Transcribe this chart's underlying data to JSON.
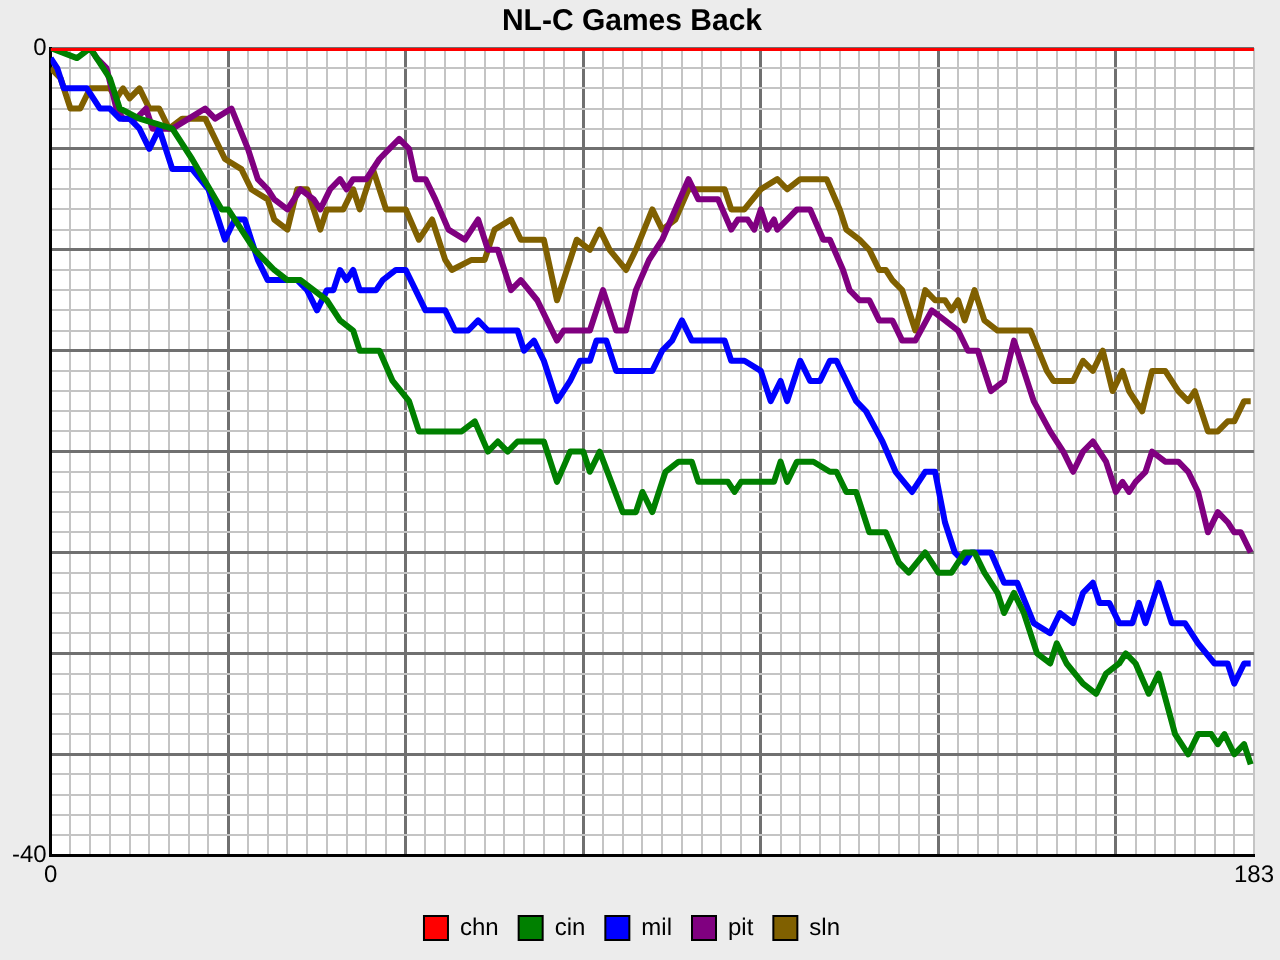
{
  "chart_data": {
    "type": "line",
    "title": "NL-C Games Back",
    "xlim": [
      0,
      183
    ],
    "ylim": [
      -40,
      0
    ],
    "xticks": [
      0,
      {
        "value": 3,
        "label": null
      },
      {
        "value": 6,
        "label": null
      },
      {
        "value": 9,
        "label": null
      },
      {
        "value": 12,
        "label": null
      },
      {
        "value": 15,
        "label": null
      },
      {
        "value": 18,
        "label": null
      },
      {
        "value": 21,
        "label": null
      },
      {
        "value": 24,
        "label": null
      },
      {
        "value": 27,
        "label": null
      },
      {
        "value": 30,
        "label": null
      },
      {
        "value": 33,
        "label": null
      },
      {
        "value": 36,
        "label": null
      },
      {
        "value": 39,
        "label": null
      },
      {
        "value": 42,
        "label": null
      },
      {
        "value": 45,
        "label": null
      },
      {
        "value": 48,
        "label": null
      },
      {
        "value": 51,
        "label": null
      },
      {
        "value": 54,
        "label": null
      },
      {
        "value": 57,
        "label": null
      },
      {
        "value": 60,
        "label": null
      },
      {
        "value": 63,
        "label": null
      },
      {
        "value": 66,
        "label": null
      },
      {
        "value": 69,
        "label": null
      },
      {
        "value": 72,
        "label": null
      },
      {
        "value": 75,
        "label": null
      },
      {
        "value": 78,
        "label": null
      },
      {
        "value": 81,
        "label": null
      },
      {
        "value": 84,
        "label": null
      },
      {
        "value": 87,
        "label": null
      },
      {
        "value": 90,
        "label": null
      },
      {
        "value": 93,
        "label": null
      },
      {
        "value": 96,
        "label": null
      },
      {
        "value": 99,
        "label": null
      },
      {
        "value": 102,
        "label": null
      },
      {
        "value": 105,
        "label": null
      },
      {
        "value": 108,
        "label": null
      },
      {
        "value": 111,
        "label": null
      },
      {
        "value": 114,
        "label": null
      },
      {
        "value": 117,
        "label": null
      },
      {
        "value": 120,
        "label": null
      },
      {
        "value": 123,
        "label": null
      },
      {
        "value": 126,
        "label": null
      },
      {
        "value": 129,
        "label": null
      },
      {
        "value": 132,
        "label": null
      },
      {
        "value": 135,
        "label": null
      },
      {
        "value": 138,
        "label": null
      },
      {
        "value": 141,
        "label": null
      },
      {
        "value": 144,
        "label": null
      },
      {
        "value": 147,
        "label": null
      },
      {
        "value": 150,
        "label": null
      },
      {
        "value": 153,
        "label": null
      },
      {
        "value": 156,
        "label": null
      },
      {
        "value": 159,
        "label": null
      },
      {
        "value": 162,
        "label": null
      },
      {
        "value": 165,
        "label": null
      },
      {
        "value": 168,
        "label": null
      },
      {
        "value": 171,
        "label": null
      },
      {
        "value": 174,
        "label": null
      },
      {
        "value": 177,
        "label": null
      },
      {
        "value": 180,
        "label": null
      },
      183
    ],
    "yticks": [
      0,
      {
        "value": -1,
        "label": null
      },
      {
        "value": -2,
        "label": null
      },
      {
        "value": -3,
        "label": null
      },
      {
        "value": -4,
        "label": null
      },
      {
        "value": -5,
        "label": null
      },
      {
        "value": -6,
        "label": null
      },
      {
        "value": -7,
        "label": null
      },
      {
        "value": -8,
        "label": null
      },
      {
        "value": -9,
        "label": null
      },
      {
        "value": -10,
        "label": null
      },
      {
        "value": -11,
        "label": null
      },
      {
        "value": -12,
        "label": null
      },
      {
        "value": -13,
        "label": null
      },
      {
        "value": -14,
        "label": null
      },
      {
        "value": -15,
        "label": null
      },
      {
        "value": -16,
        "label": null
      },
      {
        "value": -17,
        "label": null
      },
      {
        "value": -18,
        "label": null
      },
      {
        "value": -19,
        "label": null
      },
      {
        "value": -20,
        "label": null
      },
      {
        "value": -21,
        "label": null
      },
      {
        "value": -22,
        "label": null
      },
      {
        "value": -23,
        "label": null
      },
      {
        "value": -24,
        "label": null
      },
      {
        "value": -25,
        "label": null
      },
      {
        "value": -26,
        "label": null
      },
      {
        "value": -27,
        "label": null
      },
      {
        "value": -28,
        "label": null
      },
      {
        "value": -29,
        "label": null
      },
      {
        "value": -30,
        "label": null
      },
      {
        "value": -31,
        "label": null
      },
      {
        "value": -32,
        "label": null
      },
      {
        "value": -33,
        "label": null
      },
      {
        "value": -34,
        "label": null
      },
      {
        "value": -35,
        "label": null
      },
      {
        "value": -36,
        "label": null
      },
      {
        "value": -37,
        "label": null
      },
      {
        "value": -38,
        "label": null
      },
      {
        "value": -39,
        "label": null
      },
      -40
    ],
    "grid": true,
    "legend": "bottom",
    "marker": "none",
    "line_style": "solid",
    "series": [
      {
        "name": "chn",
        "color": "#ff0000",
        "x": [
          0,
          183
        ],
        "values": [
          0,
          0
        ]
      },
      {
        "name": "cin",
        "color": "#008000",
        "x": [
          0,
          4,
          6,
          9,
          10.5,
          13.5,
          18.5,
          21.5,
          26,
          27,
          31,
          34,
          36,
          38,
          40,
          42,
          44,
          46,
          47,
          50,
          52,
          54.5,
          56,
          62.5,
          64.5,
          66.5,
          68,
          69.5,
          71,
          73,
          75,
          77,
          79,
          81,
          82,
          83.5,
          87,
          89,
          90,
          91.5,
          93.5,
          95.5,
          97.5,
          98.5,
          103,
          104,
          105,
          110,
          111,
          112,
          113.5,
          116,
          118.5,
          119.5,
          121,
          122.5,
          124.5,
          127,
          129,
          130.5,
          133,
          135,
          137,
          139,
          140.5,
          142,
          144,
          145,
          146.5,
          148,
          150,
          152,
          153,
          154.5,
          157,
          159,
          160.5,
          162.5,
          163.5,
          165,
          167,
          168.5,
          171,
          173,
          174.5,
          176.5,
          177.5,
          178.5,
          180,
          181.5,
          182.5
        ],
        "values": [
          0,
          -0.5,
          0,
          -1.5,
          -3,
          -3.5,
          -4,
          -5.5,
          -8,
          -8,
          -10,
          -11,
          -11.5,
          -11.5,
          -12,
          -12.5,
          -13.5,
          -14,
          -15,
          -15,
          -16.5,
          -17.5,
          -19,
          -19,
          -18.5,
          -20,
          -19.5,
          -20,
          -19.5,
          -19.5,
          -19.5,
          -21.5,
          -20,
          -20,
          -21,
          -20,
          -23,
          -23,
          -22,
          -23,
          -21,
          -20.5,
          -20.5,
          -21.5,
          -21.5,
          -22,
          -21.5,
          -21.5,
          -20.5,
          -21.5,
          -20.5,
          -20.5,
          -21,
          -21,
          -22,
          -22,
          -24,
          -24,
          -25.5,
          -26,
          -25,
          -26,
          -26,
          -25,
          -25,
          -26,
          -27,
          -28,
          -27,
          -28,
          -30,
          -30.5,
          -29.5,
          -30.5,
          -31.5,
          -32,
          -31,
          -30.5,
          -30,
          -30.5,
          -32,
          -31,
          -34,
          -35,
          -34,
          -34,
          -34.5,
          -34,
          -35,
          -34.5,
          -35.5
        ]
      },
      {
        "name": "mil",
        "color": "#0000ff",
        "x": [
          0,
          1,
          2,
          5.5,
          7.5,
          9,
          10.5,
          12,
          13.5,
          15,
          16.5,
          18.5,
          21.5,
          24,
          26.5,
          28,
          29.5,
          31.5,
          33,
          36,
          37.5,
          39,
          40.5,
          42,
          43,
          44,
          45,
          46,
          47,
          49.5,
          50.5,
          52.5,
          54,
          55.5,
          57,
          60,
          61.5,
          63.5,
          65,
          66.5,
          71,
          72,
          73.5,
          75,
          77,
          79,
          80.5,
          82,
          83,
          84.5,
          86,
          91.5,
          93,
          94.5,
          96,
          97.5,
          102.5,
          103.5,
          105.5,
          108,
          109.5,
          111,
          112,
          114,
          115.5,
          117,
          118.5,
          119.5,
          121,
          122.5,
          124,
          126.5,
          128.5,
          131,
          133,
          134.5,
          136,
          137.5,
          139,
          140,
          143,
          145,
          147,
          149.5,
          152,
          153.5,
          155.5,
          157,
          158.5,
          159.5,
          161,
          162.5,
          164.5,
          165.5,
          166.5,
          168.5,
          170.5,
          172.5,
          174.5,
          177,
          179,
          180,
          181.5,
          182.5
        ],
        "values": [
          -0.5,
          -1,
          -2,
          -2,
          -3,
          -3,
          -3.5,
          -3.5,
          -4,
          -5,
          -4,
          -6,
          -6,
          -7,
          -9.5,
          -8.5,
          -8.5,
          -10.5,
          -11.5,
          -11.5,
          -11.5,
          -12,
          -13,
          -12,
          -12,
          -11,
          -11.5,
          -11,
          -12,
          -12,
          -11.5,
          -11,
          -11,
          -12,
          -13,
          -13,
          -14,
          -14,
          -13.5,
          -14,
          -14,
          -15,
          -14.5,
          -15.5,
          -17.5,
          -16.5,
          -15.5,
          -15.5,
          -14.5,
          -14.5,
          -16,
          -16,
          -15,
          -14.5,
          -13.5,
          -14.5,
          -14.5,
          -15.5,
          -15.5,
          -16,
          -17.5,
          -16.5,
          -17.5,
          -15.5,
          -16.5,
          -16.5,
          -15.5,
          -15.5,
          -16.5,
          -17.5,
          -18,
          -19.5,
          -21,
          -22,
          -21,
          -21,
          -23.5,
          -25,
          -25.5,
          -25,
          -25,
          -26.5,
          -26.5,
          -28.5,
          -29,
          -28,
          -28.5,
          -27,
          -26.5,
          -27.5,
          -27.5,
          -28.5,
          -28.5,
          -27.5,
          -28.5,
          -26.5,
          -28.5,
          -28.5,
          -29.5,
          -30.5,
          -30.5,
          -31.5,
          -30.5,
          -30.5
        ]
      },
      {
        "name": "pit",
        "color": "#800080",
        "x": [
          0,
          6,
          7,
          8.5,
          10,
          11,
          13,
          14.5,
          15.5,
          18.5,
          21,
          23.5,
          25,
          27.5,
          30,
          31.5,
          33,
          34,
          36,
          38,
          40,
          41,
          42.5,
          44,
          45,
          46,
          48,
          50,
          51.5,
          53,
          54.5,
          55.5,
          57,
          58.5,
          60.5,
          63,
          65,
          66.5,
          68,
          70,
          71.5,
          74,
          77,
          78,
          82,
          84,
          86,
          87.5,
          89,
          91,
          93,
          95,
          97,
          98.5,
          101.5,
          103.5,
          104.5,
          106,
          107,
          108,
          109,
          110,
          110.5,
          112,
          113.5,
          115.5,
          117.5,
          118.5,
          120.5,
          121.5,
          123,
          124.5,
          126,
          128,
          129.5,
          131.5,
          134,
          136,
          138,
          139.5,
          141,
          143,
          145,
          146.5,
          148,
          149.5,
          152,
          154,
          155.5,
          157,
          158.5,
          160.5,
          162,
          163,
          164,
          165,
          166.5,
          167.5,
          169.5,
          171.5,
          173,
          174.5,
          176,
          177.5,
          179,
          180,
          181,
          182.5
        ],
        "values": [
          0,
          0,
          -0.5,
          -1,
          -3,
          -3.5,
          -3.5,
          -3,
          -4,
          -4,
          -3.5,
          -3,
          -3.5,
          -3,
          -5,
          -6.5,
          -7,
          -7.5,
          -8,
          -7,
          -7.5,
          -8,
          -7,
          -6.5,
          -7,
          -6.5,
          -6.5,
          -5.5,
          -5,
          -4.5,
          -5,
          -6.5,
          -6.5,
          -7.5,
          -9,
          -9.5,
          -8.5,
          -10,
          -10,
          -12,
          -11.5,
          -12.5,
          -14.5,
          -14,
          -14,
          -12,
          -14,
          -14,
          -12,
          -10.5,
          -9.5,
          -8,
          -6.5,
          -7.5,
          -7.5,
          -9,
          -8.5,
          -8.5,
          -9,
          -8,
          -9,
          -8.5,
          -9,
          -8.5,
          -8,
          -8,
          -9.5,
          -9.5,
          -11,
          -12,
          -12.5,
          -12.5,
          -13.5,
          -13.5,
          -14.5,
          -14.5,
          -13,
          -13.5,
          -14,
          -15,
          -15,
          -17,
          -16.5,
          -14.5,
          -16,
          -17.5,
          -19,
          -20,
          -21,
          -20,
          -19.5,
          -20.5,
          -22,
          -21.5,
          -22,
          -21.5,
          -21,
          -20,
          -20.5,
          -20.5,
          -21,
          -22,
          -24,
          -23,
          -23.5,
          -24,
          -24,
          -25
        ]
      },
      {
        "name": "sln",
        "color": "#806000",
        "x": [
          0,
          1.5,
          3,
          4.5,
          6,
          9,
          10,
          11,
          12,
          13.5,
          15,
          16.5,
          18,
          20,
          22,
          23.5,
          26.5,
          29,
          30.5,
          33,
          34,
          36,
          37.5,
          39,
          41,
          42,
          44.5,
          46,
          47,
          49,
          51,
          54,
          56,
          58,
          60,
          61,
          64,
          66,
          67.5,
          70,
          71.5,
          75,
          77,
          80,
          82,
          83.5,
          85,
          87.5,
          89,
          91.5,
          93,
          95,
          97,
          102.5,
          103.5,
          105.5,
          108,
          110.5,
          112,
          114,
          118,
          120,
          121,
          123,
          124.5,
          126,
          127,
          128,
          129.5,
          131.5,
          133,
          134.5,
          136,
          137,
          138,
          139,
          140.5,
          142,
          144,
          149,
          151.5,
          152.5,
          155.5,
          157,
          158.5,
          160,
          161.5,
          163,
          164,
          166,
          167.5,
          169.5,
          171.5,
          173,
          174,
          176,
          177.5,
          179,
          180,
          181.5,
          182.5
        ],
        "values": [
          -1,
          -1.5,
          -3,
          -3,
          -2,
          -2,
          -2.5,
          -2,
          -2.5,
          -2,
          -3,
          -3,
          -4,
          -3.5,
          -3.5,
          -3.5,
          -5.5,
          -6,
          -7,
          -7.5,
          -8.5,
          -9,
          -7,
          -7,
          -9,
          -8,
          -8,
          -7,
          -8,
          -6,
          -8,
          -8,
          -9.5,
          -8.5,
          -10.5,
          -11,
          -10.5,
          -10.5,
          -9,
          -8.5,
          -9.5,
          -9.5,
          -12.5,
          -9.5,
          -10,
          -9,
          -10,
          -11,
          -10,
          -8,
          -9,
          -8.5,
          -7,
          -7,
          -8,
          -8,
          -7,
          -6.5,
          -7,
          -6.5,
          -6.5,
          -8,
          -9,
          -9.5,
          -10,
          -11,
          -11,
          -11.5,
          -12,
          -14,
          -12,
          -12.5,
          -12.5,
          -13,
          -12.5,
          -13.5,
          -12,
          -13.5,
          -14,
          -14,
          -16,
          -16.5,
          -16.5,
          -15.5,
          -16,
          -15,
          -17,
          -16,
          -17,
          -18,
          -16,
          -16,
          -17,
          -17.5,
          -17,
          -19,
          -19,
          -18.5,
          -18.5,
          -17.5,
          -17.5
        ]
      }
    ]
  }
}
